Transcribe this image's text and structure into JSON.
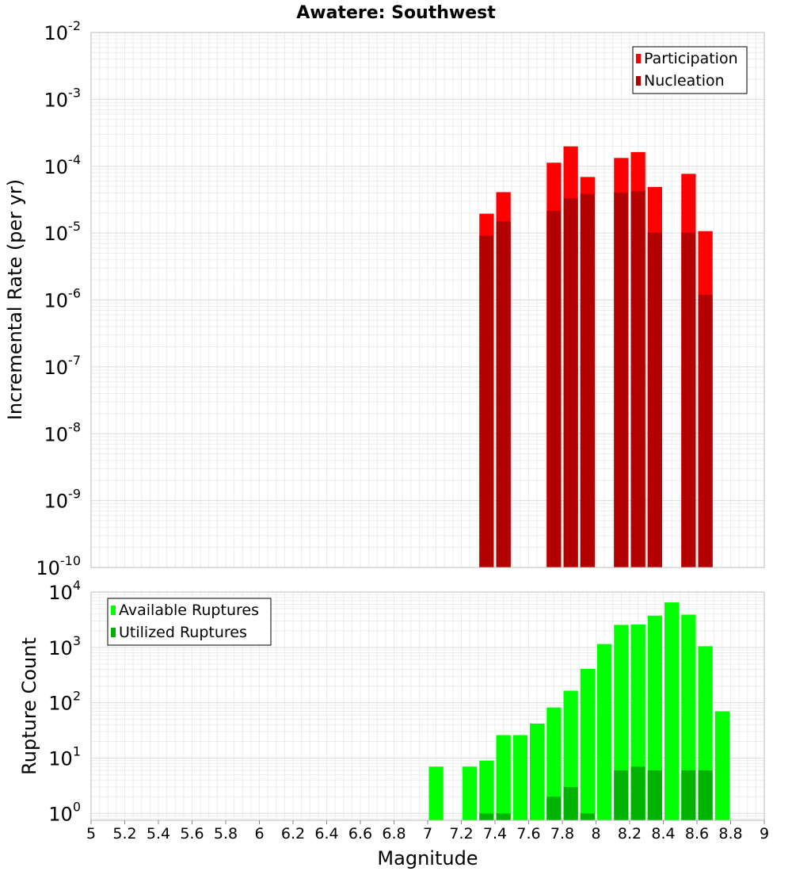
{
  "title": "Awatere: Southwest",
  "colors": {
    "participation": "#ff0000",
    "nucleation": "#b30000",
    "available": "#00ff00",
    "utilized": "#00b300",
    "grid": "#e6e6e6",
    "plot_border": "#bbbbbb"
  },
  "chart_data": [
    {
      "type": "bar",
      "title": "Awatere: Southwest",
      "xlabel": "",
      "ylabel": "Incremental Rate (per yr)",
      "xlim": [
        5,
        9
      ],
      "ylim": [
        1e-10,
        0.01
      ],
      "yscale": "log",
      "grid": true,
      "legend_position": "top-right",
      "y_ticks": [
        {
          "base": "10",
          "exp": "-2"
        },
        {
          "base": "10",
          "exp": "-3"
        },
        {
          "base": "10",
          "exp": "-4"
        },
        {
          "base": "10",
          "exp": "-5"
        },
        {
          "base": "10",
          "exp": "-6"
        },
        {
          "base": "10",
          "exp": "-7"
        },
        {
          "base": "10",
          "exp": "-8"
        },
        {
          "base": "10",
          "exp": "-9"
        },
        {
          "base": "10",
          "exp": "-10"
        }
      ],
      "series": [
        {
          "name": "Participation",
          "color": "#ff0000",
          "points": [
            {
              "x": 7.35,
              "y": 1.95e-05
            },
            {
              "x": 7.45,
              "y": 4.1e-05
            },
            {
              "x": 7.75,
              "y": 0.000113
            },
            {
              "x": 7.85,
              "y": 0.000198
            },
            {
              "x": 7.95,
              "y": 6.9e-05
            },
            {
              "x": 8.15,
              "y": 0.000133
            },
            {
              "x": 8.25,
              "y": 0.000163
            },
            {
              "x": 8.35,
              "y": 4.9e-05
            },
            {
              "x": 8.55,
              "y": 7.7e-05
            },
            {
              "x": 8.65,
              "y": 1.07e-05
            }
          ]
        },
        {
          "name": "Nucleation",
          "color": "#b30000",
          "points": [
            {
              "x": 7.35,
              "y": 9.2e-06
            },
            {
              "x": 7.45,
              "y": 1.5e-05
            },
            {
              "x": 7.75,
              "y": 2.15e-05
            },
            {
              "x": 7.85,
              "y": 3.3e-05
            },
            {
              "x": 7.95,
              "y": 3.85e-05
            },
            {
              "x": 8.15,
              "y": 4.05e-05
            },
            {
              "x": 8.25,
              "y": 4.25e-05
            },
            {
              "x": 8.35,
              "y": 1.02e-05
            },
            {
              "x": 8.55,
              "y": 1.02e-05
            },
            {
              "x": 8.65,
              "y": 1.2e-06
            }
          ]
        }
      ]
    },
    {
      "type": "bar",
      "title": "",
      "xlabel": "Magnitude",
      "ylabel": "Rupture Count",
      "xlim": [
        5,
        9
      ],
      "ylim": [
        0.75,
        10000
      ],
      "yscale": "log",
      "grid": true,
      "legend_position": "top-left",
      "x_ticks": [
        "5",
        "5.2",
        "5.4",
        "5.6",
        "5.8",
        "6",
        "6.2",
        "6.4",
        "6.6",
        "6.8",
        "7",
        "7.2",
        "7.4",
        "7.6",
        "7.8",
        "8",
        "8.2",
        "8.4",
        "8.6",
        "8.8",
        "9"
      ],
      "y_ticks": [
        {
          "base": "10",
          "exp": "4"
        },
        {
          "base": "10",
          "exp": "3"
        },
        {
          "base": "10",
          "exp": "2"
        },
        {
          "base": "10",
          "exp": "1"
        },
        {
          "base": "10",
          "exp": "0"
        }
      ],
      "series": [
        {
          "name": "Available Ruptures",
          "color": "#00ff00",
          "points": [
            {
              "x": 7.05,
              "y": 7
            },
            {
              "x": 7.25,
              "y": 7
            },
            {
              "x": 7.35,
              "y": 9
            },
            {
              "x": 7.45,
              "y": 26
            },
            {
              "x": 7.55,
              "y": 26
            },
            {
              "x": 7.65,
              "y": 42
            },
            {
              "x": 7.75,
              "y": 82
            },
            {
              "x": 7.85,
              "y": 165
            },
            {
              "x": 7.95,
              "y": 410
            },
            {
              "x": 8.05,
              "y": 1150
            },
            {
              "x": 8.15,
              "y": 2550
            },
            {
              "x": 8.25,
              "y": 2600
            },
            {
              "x": 8.35,
              "y": 3750
            },
            {
              "x": 8.45,
              "y": 6500
            },
            {
              "x": 8.55,
              "y": 3900
            },
            {
              "x": 8.65,
              "y": 1050
            },
            {
              "x": 8.75,
              "y": 70
            }
          ]
        },
        {
          "name": "Utilized Ruptures",
          "color": "#00b300",
          "points": [
            {
              "x": 7.35,
              "y": 1
            },
            {
              "x": 7.45,
              "y": 1
            },
            {
              "x": 7.75,
              "y": 2
            },
            {
              "x": 7.85,
              "y": 3
            },
            {
              "x": 7.95,
              "y": 1
            },
            {
              "x": 8.15,
              "y": 6
            },
            {
              "x": 8.25,
              "y": 7
            },
            {
              "x": 8.35,
              "y": 6
            },
            {
              "x": 8.55,
              "y": 6
            },
            {
              "x": 8.65,
              "y": 6
            }
          ]
        }
      ]
    }
  ]
}
